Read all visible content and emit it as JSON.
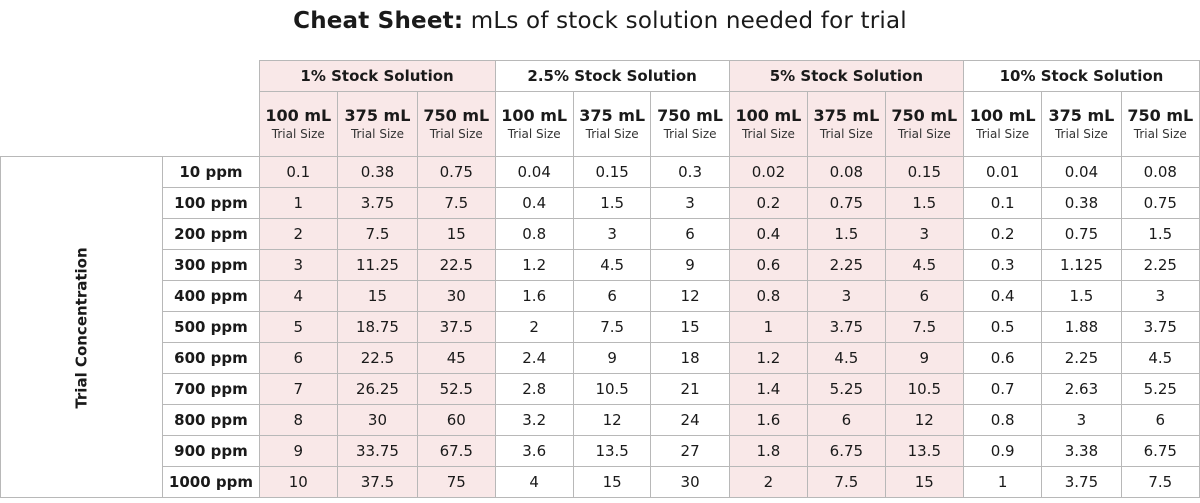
{
  "title": {
    "bold": "Cheat Sheet:",
    "rest": " mLs of stock solution needed for trial"
  },
  "axis_label": "Trial Concentration",
  "stocks": [
    {
      "label": "1% Stock Solution",
      "tinted": true
    },
    {
      "label": "2.5% Stock Solution",
      "tinted": false
    },
    {
      "label": "5% Stock Solution",
      "tinted": true
    },
    {
      "label": "10% Stock Solution",
      "tinted": false
    }
  ],
  "trial_sizes": [
    "100 mL",
    "375 mL",
    "750 mL"
  ],
  "trial_size_caption": "Trial Size",
  "rows": [
    {
      "label": "10 ppm",
      "values": [
        "0.1",
        "0.38",
        "0.75",
        "0.04",
        "0.15",
        "0.3",
        "0.02",
        "0.08",
        "0.15",
        "0.01",
        "0.04",
        "0.08"
      ]
    },
    {
      "label": "100 ppm",
      "values": [
        "1",
        "3.75",
        "7.5",
        "0.4",
        "1.5",
        "3",
        "0.2",
        "0.75",
        "1.5",
        "0.1",
        "0.38",
        "0.75"
      ]
    },
    {
      "label": "200 ppm",
      "values": [
        "2",
        "7.5",
        "15",
        "0.8",
        "3",
        "6",
        "0.4",
        "1.5",
        "3",
        "0.2",
        "0.75",
        "1.5"
      ]
    },
    {
      "label": "300 ppm",
      "values": [
        "3",
        "11.25",
        "22.5",
        "1.2",
        "4.5",
        "9",
        "0.6",
        "2.25",
        "4.5",
        "0.3",
        "1.125",
        "2.25"
      ]
    },
    {
      "label": "400 ppm",
      "values": [
        "4",
        "15",
        "30",
        "1.6",
        "6",
        "12",
        "0.8",
        "3",
        "6",
        "0.4",
        "1.5",
        "3"
      ]
    },
    {
      "label": "500 ppm",
      "values": [
        "5",
        "18.75",
        "37.5",
        "2",
        "7.5",
        "15",
        "1",
        "3.75",
        "7.5",
        "0.5",
        "1.88",
        "3.75"
      ]
    },
    {
      "label": "600 ppm",
      "values": [
        "6",
        "22.5",
        "45",
        "2.4",
        "9",
        "18",
        "1.2",
        "4.5",
        "9",
        "0.6",
        "2.25",
        "4.5"
      ]
    },
    {
      "label": "700 ppm",
      "values": [
        "7",
        "26.25",
        "52.5",
        "2.8",
        "10.5",
        "21",
        "1.4",
        "5.25",
        "10.5",
        "0.7",
        "2.63",
        "5.25"
      ]
    },
    {
      "label": "800 ppm",
      "values": [
        "8",
        "30",
        "60",
        "3.2",
        "12",
        "24",
        "1.6",
        "6",
        "12",
        "0.8",
        "3",
        "6"
      ]
    },
    {
      "label": "900 ppm",
      "values": [
        "9",
        "33.75",
        "67.5",
        "3.6",
        "13.5",
        "27",
        "1.8",
        "6.75",
        "13.5",
        "0.9",
        "3.38",
        "6.75"
      ]
    },
    {
      "label": "1000 ppm",
      "values": [
        "10",
        "37.5",
        "75",
        "4",
        "15",
        "30",
        "2",
        "7.5",
        "15",
        "1",
        "3.75",
        "7.5"
      ]
    }
  ],
  "colors": {
    "tint": "#f9e8e8",
    "border": "#b8b8b8",
    "text": "#1a1a1a"
  }
}
